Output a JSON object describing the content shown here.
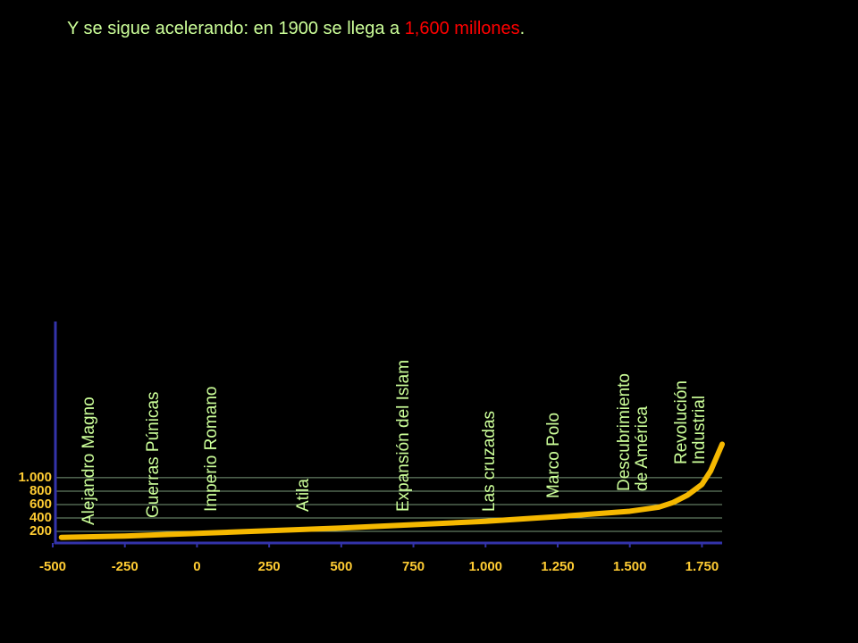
{
  "chart_data": {
    "type": "line",
    "title": {
      "parts": [
        {
          "text": "Y se sigue acelerando: en 1900 se llega a ",
          "color": "#ccff99"
        },
        {
          "text": "1,600 millones",
          "color": "#ff0000"
        },
        {
          "text": ".",
          "color": "#ccff99"
        }
      ]
    },
    "x": [
      -470,
      -250,
      0,
      250,
      500,
      750,
      1000,
      1250,
      1500,
      1600,
      1650,
      1700,
      1750,
      1780,
      1800,
      1820
    ],
    "series": [
      {
        "color": "#f5b800",
        "values": [
          110,
          130,
          170,
          210,
          250,
          300,
          350,
          420,
          500,
          560,
          630,
          740,
          900,
          1100,
          1300,
          1500
        ]
      }
    ],
    "xlim": [
      -500,
      1820
    ],
    "ylim": [
      0,
      3330
    ],
    "xticks": [
      -500,
      -250,
      0,
      250,
      500,
      750,
      {
        "value": 1000,
        "label": "1.000"
      },
      {
        "value": 1250,
        "label": "1.250"
      },
      {
        "value": 1500,
        "label": "1.500"
      },
      {
        "value": 1750,
        "label": "1.750"
      }
    ],
    "yticks": [
      200,
      400,
      600,
      800,
      {
        "value": 1000,
        "label": "1.000"
      }
    ],
    "grid": true,
    "events": [
      {
        "lines": [
          "Alejandro Magno"
        ]
      },
      {
        "lines": [
          "Guerras Púnicas"
        ]
      },
      {
        "lines": [
          "Imperio Romano"
        ]
      },
      {
        "lines": [
          "Atila"
        ]
      },
      {
        "lines": [
          "Expansión del Islam"
        ]
      },
      {
        "lines": [
          "Las cruzadas"
        ]
      },
      {
        "lines": [
          "Marco Polo"
        ]
      },
      {
        "lines": [
          "Descubrimiento",
          "de América"
        ]
      },
      {
        "lines": [
          "Revolución",
          "Industrial"
        ]
      }
    ]
  }
}
